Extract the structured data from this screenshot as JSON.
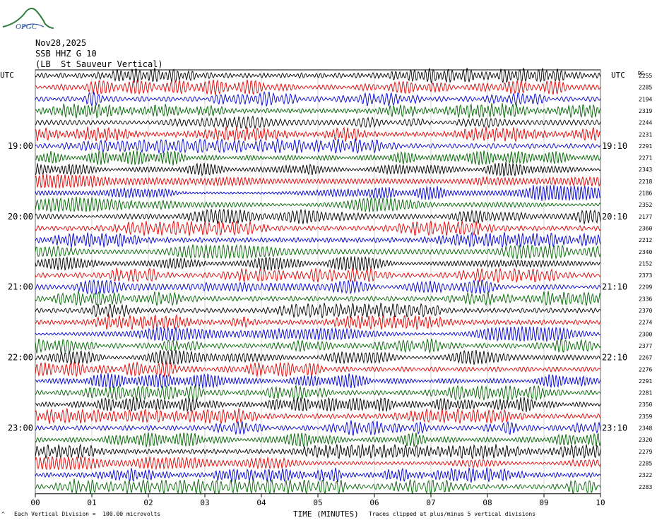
{
  "header": {
    "logo_text": "OPGC",
    "date": "Nov28,2025",
    "station": "SSB HHZ G 10",
    "location": "(LB  St Sauveur Vertical)"
  },
  "labels": {
    "left_utc": "UTC",
    "right_utc": "UTC",
    "right_col_header": "DC",
    "x_axis_title": "TIME (MINUTES)",
    "footer_left": "Each Vertical Division =  100.00 microvolts",
    "footer_right": "Traces clipped at plus/minus 5 vertical divisions",
    "footer_mark": "^"
  },
  "colors": {
    "trace_cycle": [
      "#000000",
      "#e00000",
      "#0000d0",
      "#006400"
    ],
    "grid": "#bbbbbb"
  },
  "chart_data": {
    "type": "line",
    "description_kind": "helicorder",
    "x_ticks": [
      "00",
      "01",
      "02",
      "03",
      "04",
      "05",
      "06",
      "07",
      "08",
      "09",
      "10"
    ],
    "xlim": [
      0,
      10
    ],
    "xlabel": "TIME (MINUTES)",
    "left_time_labels": [
      {
        "row": 6,
        "text": "19:00"
      },
      {
        "row": 12,
        "text": "20:00"
      },
      {
        "row": 18,
        "text": "21:00"
      },
      {
        "row": 24,
        "text": "22:00"
      },
      {
        "row": 30,
        "text": "23:00"
      }
    ],
    "right_time_labels": [
      {
        "row": 6,
        "text": "19:10"
      },
      {
        "row": 12,
        "text": "20:10"
      },
      {
        "row": 18,
        "text": "21:10"
      },
      {
        "row": 24,
        "text": "22:10"
      },
      {
        "row": 30,
        "text": "23:10"
      }
    ],
    "dc_offsets": [
      "2255",
      "2285",
      "2194",
      "2319",
      "2244",
      "2231",
      "2291",
      "2271",
      "2343",
      "2218",
      "2186",
      "2352",
      "2177",
      "2360",
      "2212",
      "2340",
      "2152",
      "2373",
      "2299",
      "2336",
      "2370",
      "2274",
      "2300",
      "2377",
      "2267",
      "2276",
      "2291",
      "2281",
      "2350",
      "2359",
      "2348",
      "2320",
      "2279",
      "2285",
      "2322",
      "2283"
    ],
    "trace_count": 36,
    "scale_microvolts_per_division": 100.0,
    "clip_divisions": 5
  }
}
